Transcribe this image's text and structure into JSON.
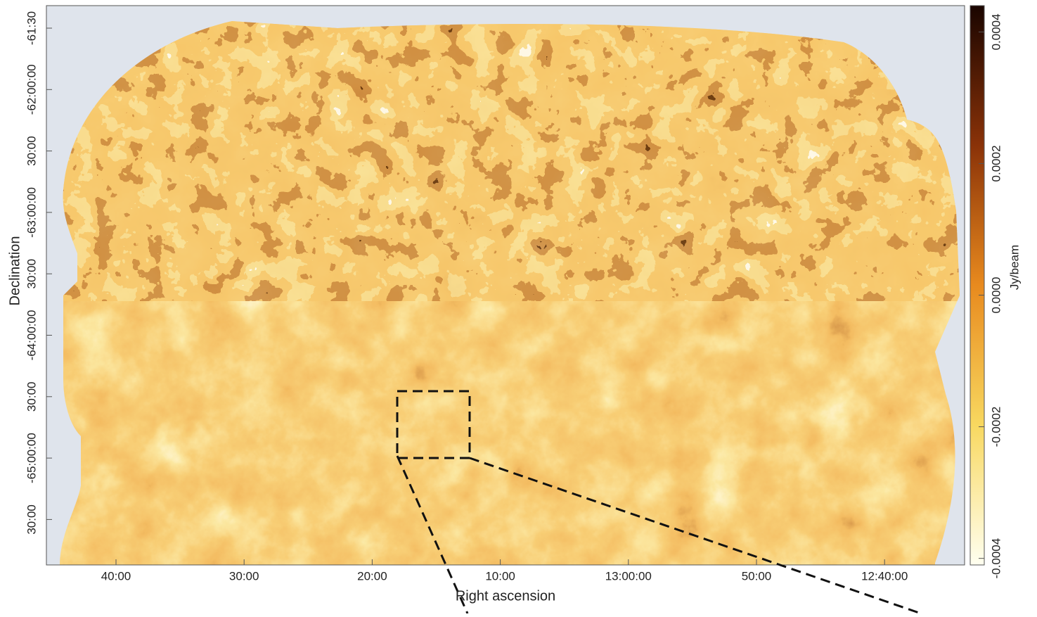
{
  "chart_data": {
    "type": "image",
    "xlabel": "Right ascension",
    "ylabel": "Declination",
    "x_tick_labels": [
      "40:00",
      "30:00",
      "20:00",
      "10:00",
      "13:00:00",
      "50:00",
      "12:40:00"
    ],
    "y_tick_labels": [
      "-61:30",
      "-62:00:00",
      "30:00",
      "-63:00:00",
      "30:00",
      "-64:00:00",
      "30:00",
      "-65:00:00",
      "30:00"
    ],
    "colorbar": {
      "label": "Jy/beam",
      "clim": [
        -0.00041,
        0.00044
      ],
      "ticks": [
        0.0004,
        0.0002,
        {
          "value": 0,
          "label": "0.0000"
        },
        -0.0002,
        -0.0004
      ]
    }
  }
}
